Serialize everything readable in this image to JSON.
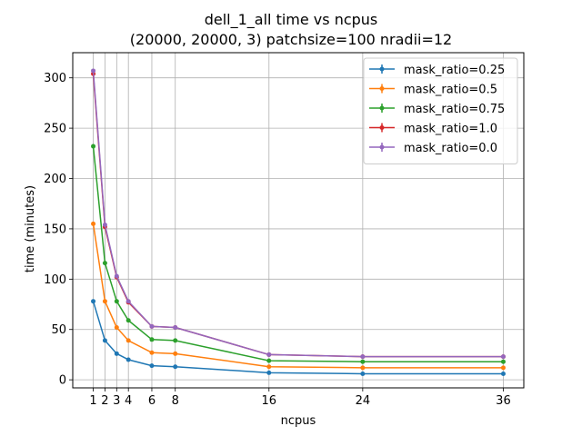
{
  "chart_data": {
    "type": "line",
    "title": "dell_1_all time vs ncpus",
    "subtitle": "(20000, 20000, 3) patchsize=100 nradii=12",
    "xlabel": "ncpus",
    "ylabel": "time (minutes)",
    "x": [
      1,
      2,
      3,
      4,
      6,
      8,
      16,
      24,
      36
    ],
    "xlim": [
      -0.75,
      37.75
    ],
    "ylim": [
      -8,
      325
    ],
    "xticks": [
      1,
      2,
      3,
      4,
      6,
      8,
      16,
      24,
      36
    ],
    "yticks": [
      0,
      50,
      100,
      150,
      200,
      250,
      300
    ],
    "grid": true,
    "legend_position": "upper right",
    "series": [
      {
        "name": "mask_ratio=0.25",
        "color": "#1f77b4",
        "values": [
          78,
          39,
          26,
          20,
          14,
          13,
          7,
          6,
          6
        ]
      },
      {
        "name": "mask_ratio=0.5",
        "color": "#ff7f0e",
        "values": [
          155,
          78,
          52,
          39,
          27,
          26,
          13,
          12,
          12
        ]
      },
      {
        "name": "mask_ratio=0.75",
        "color": "#2ca02c",
        "values": [
          232,
          116,
          78,
          59,
          40,
          39,
          19,
          18,
          18
        ]
      },
      {
        "name": "mask_ratio=1.0",
        "color": "#d62728",
        "values": [
          304,
          152,
          102,
          77,
          53,
          52,
          25,
          23,
          23
        ]
      },
      {
        "name": "mask_ratio=0.0",
        "color": "#9467bd",
        "values": [
          307,
          154,
          103,
          78,
          53,
          52,
          25,
          23,
          23
        ]
      }
    ]
  }
}
